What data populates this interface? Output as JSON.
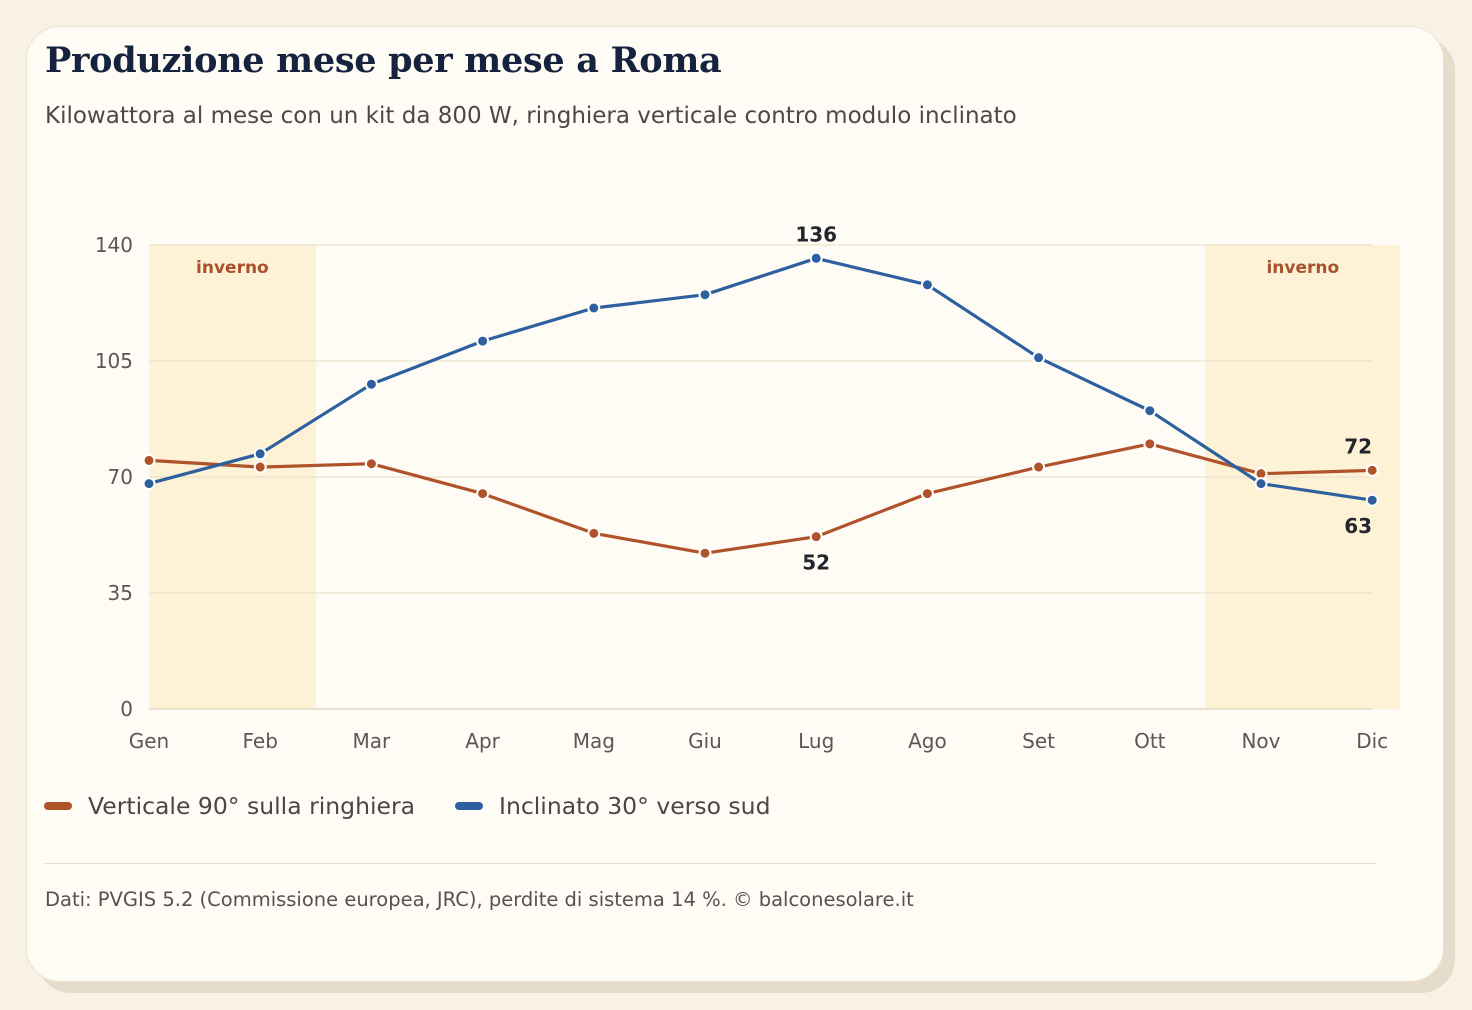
{
  "title": "Produzione mese per mese a Roma",
  "subtitle": "Kilowattora al mese con un kit da 800 W, ringhiera verticale contro modulo inclinato",
  "chart_data": {
    "type": "line",
    "categories": [
      "Gen",
      "Feb",
      "Mar",
      "Apr",
      "Mag",
      "Giu",
      "Lug",
      "Ago",
      "Set",
      "Ott",
      "Nov",
      "Dic"
    ],
    "ylim": [
      0,
      140
    ],
    "yticks": [
      0,
      35,
      70,
      105,
      140
    ],
    "grid": true,
    "series": [
      {
        "name": "Verticale 90° sulla ringhiera",
        "color": "#b0532b",
        "values": [
          75,
          73,
          74,
          65,
          53,
          47,
          52,
          65,
          73,
          80,
          71,
          72
        ]
      },
      {
        "name": "Inclinato 30° verso sud",
        "color": "#2e5f9e",
        "values": [
          68,
          77,
          98,
          111,
          121,
          125,
          136,
          128,
          106,
          90,
          68,
          63
        ]
      }
    ],
    "shaded_regions": [
      {
        "label": "inverno",
        "from": "Gen",
        "to": "Feb",
        "color": "#fdf2d5"
      },
      {
        "label": "inverno",
        "from": "Nov",
        "to": "Dic",
        "color": "#fdf2d5"
      }
    ],
    "annotations": [
      {
        "series": 1,
        "category": "Lug",
        "text": "136",
        "position": "above"
      },
      {
        "series": 0,
        "category": "Lug",
        "text": "52",
        "position": "below"
      },
      {
        "series": 0,
        "category": "Dic",
        "text": "72",
        "position": "above"
      },
      {
        "series": 1,
        "category": "Dic",
        "text": "63",
        "position": "below"
      }
    ],
    "legend_position": "bottom-left"
  },
  "legend": [
    {
      "label": "Verticale 90° sulla ringhiera",
      "color": "#b0532b"
    },
    {
      "label": "Inclinato 30° verso sud",
      "color": "#2e5f9e"
    }
  ],
  "footer": "Dati: PVGIS 5.2 (Commissione europea, JRC), perdite di sistema 14 %. © balconesolare.it"
}
